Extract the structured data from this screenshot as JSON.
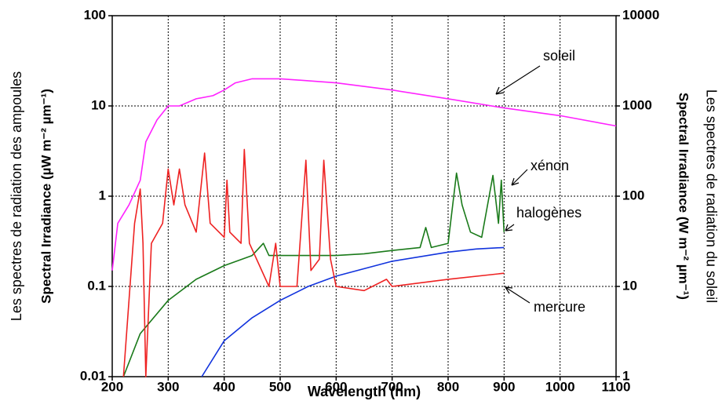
{
  "chart_data": {
    "type": "line",
    "x_label": "Wavelength (nm)",
    "y_label": "Spectral Irradiance (µW m⁻² µm⁻¹)",
    "y_label_outer": "Les spectres de radiation des ampoules",
    "y2_label": "Spectral Irradiance (W m⁻² µm⁻¹)",
    "y2_label_outer": "Les spectres de radiation du soleil",
    "xlim": [
      200,
      1100
    ],
    "xticks": [
      200,
      300,
      400,
      500,
      600,
      700,
      800,
      900,
      1000,
      1100
    ],
    "ylim": [
      0.01,
      100
    ],
    "yticks": [
      0.01,
      0.1,
      1,
      10,
      100
    ],
    "y_log": true,
    "y2lim": [
      1,
      10000
    ],
    "y2ticks": [
      1,
      10,
      100,
      1000,
      10000
    ],
    "y2_log": true,
    "grid": true,
    "series": [
      {
        "name": "soleil",
        "color": "#ff22ff",
        "axis": "y2",
        "x": [
          200,
          210,
          230,
          250,
          260,
          280,
          300,
          320,
          350,
          380,
          400,
          420,
          450,
          500,
          550,
          600,
          700,
          800,
          900,
          1000,
          1100
        ],
        "values": [
          15,
          50,
          80,
          150,
          400,
          700,
          1000,
          1000,
          1200,
          1300,
          1500,
          1800,
          2000,
          2000,
          1900,
          1800,
          1500,
          1200,
          950,
          780,
          600
        ]
      },
      {
        "name": "xénon",
        "color": "#1a7a1a",
        "x": [
          220,
          250,
          300,
          350,
          400,
          450,
          470,
          480,
          550,
          600,
          650,
          700,
          750,
          760,
          770,
          800,
          815,
          825,
          840,
          860,
          880,
          890,
          895,
          900
        ],
        "values": [
          0.01,
          0.03,
          0.07,
          0.12,
          0.17,
          0.22,
          0.3,
          0.22,
          0.22,
          0.22,
          0.23,
          0.25,
          0.27,
          0.45,
          0.27,
          0.3,
          1.8,
          0.8,
          0.4,
          0.35,
          1.7,
          0.5,
          1.5,
          0.4
        ]
      },
      {
        "name": "halogènes",
        "color": "#1133dd",
        "x": [
          360,
          400,
          450,
          500,
          550,
          600,
          700,
          800,
          850,
          900
        ],
        "values": [
          0.01,
          0.025,
          0.045,
          0.07,
          0.1,
          0.13,
          0.19,
          0.24,
          0.26,
          0.27
        ]
      },
      {
        "name": "mercure",
        "color": "#ee2222",
        "x": [
          220,
          240,
          250,
          255,
          260,
          270,
          290,
          300,
          310,
          320,
          330,
          350,
          365,
          375,
          400,
          405,
          410,
          430,
          436,
          445,
          480,
          492,
          500,
          530,
          546,
          555,
          570,
          578,
          590,
          600,
          650,
          690,
          700,
          800,
          900
        ],
        "values": [
          0.01,
          0.5,
          1.2,
          0.3,
          0.01,
          0.3,
          0.5,
          2,
          0.8,
          2,
          0.8,
          0.4,
          3,
          0.5,
          0.35,
          1.5,
          0.4,
          0.3,
          3.3,
          0.3,
          0.1,
          0.3,
          0.1,
          0.1,
          2.5,
          0.15,
          0.2,
          2.5,
          0.2,
          0.1,
          0.09,
          0.12,
          0.1,
          0.12,
          0.14
        ]
      }
    ]
  }
}
